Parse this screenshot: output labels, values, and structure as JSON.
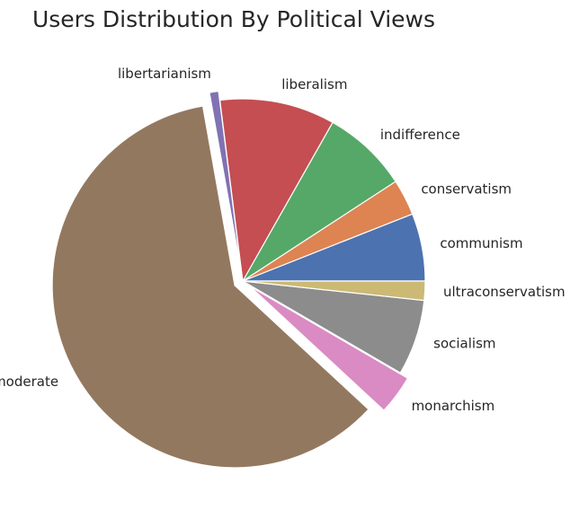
{
  "chart_data": {
    "type": "pie",
    "title": "Users Distribution By Political Views",
    "start_angle_deg": 0,
    "direction": "counterclockwise",
    "slices": [
      {
        "label": "communism",
        "value": 6.0,
        "color": "#4c72b0",
        "exploded": false
      },
      {
        "label": "conservatism",
        "value": 3.2,
        "color": "#dd8452",
        "exploded": false
      },
      {
        "label": "indifference",
        "value": 7.6,
        "color": "#55a868",
        "exploded": false
      },
      {
        "label": "liberalism",
        "value": 10.2,
        "color": "#c44e52",
        "exploded": false
      },
      {
        "label": "libertarianism",
        "value": 0.8,
        "color": "#8172b3",
        "exploded": true
      },
      {
        "label": "moderate",
        "value": 60.3,
        "color": "#937860",
        "exploded": true
      },
      {
        "label": "monarchism",
        "value": 3.5,
        "color": "#da8bc3",
        "exploded": true
      },
      {
        "label": "socialism",
        "value": 6.7,
        "color": "#8c8c8c",
        "exploded": false
      },
      {
        "label": "ultraconservatism",
        "value": 1.7,
        "color": "#ccb974",
        "exploded": false
      }
    ]
  }
}
